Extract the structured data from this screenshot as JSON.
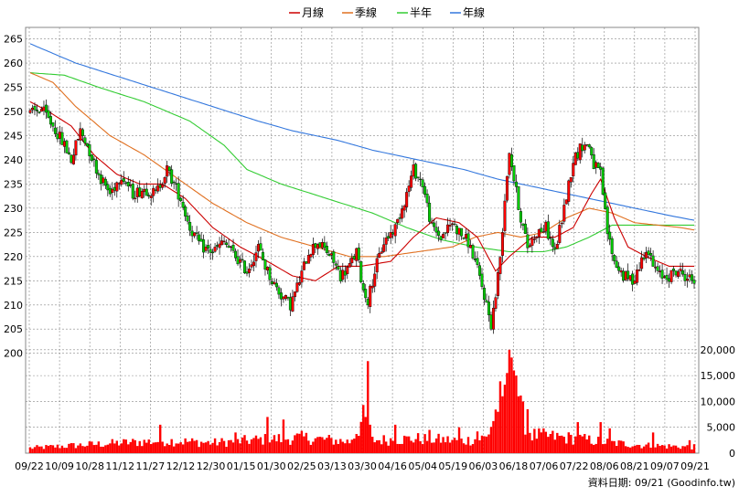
{
  "legend": [
    {
      "label": "月線",
      "color": "#cc0000"
    },
    {
      "label": "季線",
      "color": "#e07020"
    },
    {
      "label": "半年",
      "color": "#33cc33"
    },
    {
      "label": "年線",
      "color": "#3377dd"
    }
  ],
  "footer": {
    "text": "資料日期: 09/21 (Goodinfo.tw)"
  },
  "chart_data": {
    "type": "candlestick",
    "y_ticks": [
      200,
      205,
      210,
      215,
      220,
      225,
      230,
      235,
      240,
      245,
      250,
      255,
      260,
      265
    ],
    "ylim": [
      199,
      267
    ],
    "volume_ticks": [
      "0",
      "5,000",
      "10,000",
      "15,000",
      "20,000"
    ],
    "volume_tick_values": [
      0,
      5000,
      10000,
      15000,
      20000
    ],
    "volume_ylim": [
      0,
      20500
    ],
    "x_ticks": [
      "09/22",
      "10/09",
      "10/28",
      "11/12",
      "11/27",
      "12/12",
      "12/30",
      "01/15",
      "01/30",
      "02/25",
      "03/13",
      "03/30",
      "04/16",
      "05/04",
      "05/19",
      "06/03",
      "06/18",
      "07/06",
      "07/22",
      "08/06",
      "08/21",
      "09/07",
      "09/21"
    ],
    "colors": {
      "up": "#ff0000",
      "down": "#00cc00",
      "volume": "#ff0000",
      "grid": "#888888"
    },
    "price_keyframes": [
      [
        0,
        249.5
      ],
      [
        5,
        250.5
      ],
      [
        10,
        247
      ],
      [
        15,
        243
      ],
      [
        18,
        240
      ],
      [
        22,
        246
      ],
      [
        25,
        243
      ],
      [
        30,
        237
      ],
      [
        35,
        233
      ],
      [
        40,
        237
      ],
      [
        45,
        233
      ],
      [
        50,
        234
      ],
      [
        55,
        233
      ],
      [
        60,
        238
      ],
      [
        63,
        235
      ],
      [
        66,
        232
      ],
      [
        70,
        226
      ],
      [
        75,
        222
      ],
      [
        80,
        221
      ],
      [
        85,
        223
      ],
      [
        90,
        220
      ],
      [
        95,
        217
      ],
      [
        100,
        222
      ],
      [
        103,
        218
      ],
      [
        106,
        215
      ],
      [
        110,
        212
      ],
      [
        114,
        210
      ],
      [
        118,
        215
      ],
      [
        122,
        221
      ],
      [
        126,
        223
      ],
      [
        130,
        221
      ],
      [
        133,
        219
      ],
      [
        136,
        216
      ],
      [
        140,
        218
      ],
      [
        143,
        221
      ],
      [
        146,
        213
      ],
      [
        148,
        211
      ],
      [
        151,
        217
      ],
      [
        155,
        223
      ],
      [
        160,
        226
      ],
      [
        165,
        233
      ],
      [
        168,
        238
      ],
      [
        172,
        235
      ],
      [
        176,
        226
      ],
      [
        180,
        224
      ],
      [
        185,
        227
      ],
      [
        188,
        225
      ],
      [
        192,
        223
      ],
      [
        195,
        219
      ],
      [
        199,
        212
      ],
      [
        202,
        206
      ],
      [
        204,
        212
      ],
      [
        206,
        220
      ],
      [
        208,
        232
      ],
      [
        210,
        242
      ],
      [
        212,
        236
      ],
      [
        215,
        228
      ],
      [
        218,
        222
      ],
      [
        222,
        225
      ],
      [
        226,
        226
      ],
      [
        230,
        221
      ],
      [
        234,
        230
      ],
      [
        238,
        240
      ],
      [
        242,
        243
      ],
      [
        245,
        243
      ],
      [
        247,
        239
      ],
      [
        250,
        237
      ],
      [
        253,
        225
      ],
      [
        256,
        219
      ],
      [
        260,
        216
      ],
      [
        264,
        215
      ],
      [
        267,
        218
      ],
      [
        270,
        222
      ],
      [
        273,
        218
      ],
      [
        276,
        216
      ],
      [
        280,
        216
      ],
      [
        284,
        217
      ],
      [
        287,
        216
      ],
      [
        291,
        215
      ]
    ],
    "ma_month": [
      [
        0,
        252
      ],
      [
        8,
        250
      ],
      [
        18,
        247
      ],
      [
        28,
        241
      ],
      [
        38,
        237
      ],
      [
        48,
        235
      ],
      [
        58,
        235
      ],
      [
        68,
        232
      ],
      [
        80,
        226
      ],
      [
        92,
        222
      ],
      [
        104,
        219
      ],
      [
        115,
        216
      ],
      [
        125,
        215
      ],
      [
        135,
        218
      ],
      [
        145,
        218
      ],
      [
        158,
        219
      ],
      [
        168,
        224
      ],
      [
        178,
        228
      ],
      [
        188,
        227
      ],
      [
        196,
        224
      ],
      [
        204,
        217
      ],
      [
        210,
        220
      ],
      [
        220,
        224
      ],
      [
        230,
        224
      ],
      [
        238,
        226
      ],
      [
        246,
        233
      ],
      [
        250,
        236
      ],
      [
        256,
        228
      ],
      [
        262,
        222
      ],
      [
        270,
        220
      ],
      [
        280,
        218
      ],
      [
        291,
        218
      ]
    ],
    "ma_season": [
      [
        0,
        258
      ],
      [
        10,
        256
      ],
      [
        20,
        251
      ],
      [
        35,
        245
      ],
      [
        50,
        241
      ],
      [
        65,
        236
      ],
      [
        80,
        231
      ],
      [
        95,
        227
      ],
      [
        110,
        224
      ],
      [
        125,
        222
      ],
      [
        140,
        220
      ],
      [
        155,
        220
      ],
      [
        170,
        221
      ],
      [
        185,
        222
      ],
      [
        195,
        224
      ],
      [
        205,
        225
      ],
      [
        215,
        224
      ],
      [
        225,
        225
      ],
      [
        235,
        228
      ],
      [
        245,
        230
      ],
      [
        255,
        229
      ],
      [
        265,
        227
      ],
      [
        275,
        226.5
      ],
      [
        285,
        226
      ],
      [
        291,
        225.5
      ]
    ],
    "ma_half": [
      [
        0,
        258
      ],
      [
        15,
        257.5
      ],
      [
        30,
        255
      ],
      [
        50,
        252
      ],
      [
        70,
        248
      ],
      [
        85,
        243
      ],
      [
        95,
        238
      ],
      [
        110,
        235
      ],
      [
        130,
        232
      ],
      [
        150,
        229
      ],
      [
        165,
        226
      ],
      [
        180,
        223.5
      ],
      [
        195,
        222
      ],
      [
        210,
        221
      ],
      [
        225,
        221
      ],
      [
        235,
        222
      ],
      [
        245,
        224
      ],
      [
        255,
        226.5
      ],
      [
        270,
        226.5
      ],
      [
        291,
        226.5
      ]
    ],
    "ma_year": [
      [
        0,
        264
      ],
      [
        20,
        260
      ],
      [
        40,
        257
      ],
      [
        60,
        254
      ],
      [
        80,
        251
      ],
      [
        100,
        248
      ],
      [
        115,
        246
      ],
      [
        135,
        244
      ],
      [
        150,
        242
      ],
      [
        170,
        240
      ],
      [
        190,
        238
      ],
      [
        205,
        236
      ],
      [
        225,
        234
      ],
      [
        245,
        232
      ],
      [
        265,
        230
      ],
      [
        280,
        228.5
      ],
      [
        291,
        227.5
      ]
    ],
    "volume_keyframes": [
      [
        0,
        1000
      ],
      [
        20,
        1500
      ],
      [
        40,
        2000
      ],
      [
        60,
        2400
      ],
      [
        80,
        2000
      ],
      [
        100,
        2600
      ],
      [
        120,
        3000
      ],
      [
        140,
        2200
      ],
      [
        148,
        8000
      ],
      [
        150,
        2500
      ],
      [
        170,
        2800
      ],
      [
        190,
        2400
      ],
      [
        200,
        3000
      ],
      [
        205,
        9000
      ],
      [
        210,
        14000
      ],
      [
        215,
        8000
      ],
      [
        220,
        3500
      ],
      [
        240,
        2800
      ],
      [
        255,
        2000
      ],
      [
        270,
        1500
      ],
      [
        291,
        1200
      ]
    ],
    "volume_spikes": [
      [
        57,
        5500
      ],
      [
        90,
        4000
      ],
      [
        104,
        7000
      ],
      [
        111,
        6500
      ],
      [
        147,
        7000
      ],
      [
        148,
        17800
      ],
      [
        149,
        5500
      ],
      [
        160,
        5500
      ],
      [
        175,
        4500
      ],
      [
        188,
        5000
      ],
      [
        196,
        4200
      ],
      [
        205,
        8000
      ],
      [
        207,
        11000
      ],
      [
        209,
        15500
      ],
      [
        210,
        20000
      ],
      [
        211,
        18500
      ],
      [
        212,
        16000
      ],
      [
        213,
        15000
      ],
      [
        214,
        11000
      ],
      [
        216,
        10000
      ],
      [
        218,
        8500
      ],
      [
        240,
        6000
      ],
      [
        250,
        6000
      ],
      [
        254,
        4800
      ],
      [
        273,
        4000
      ],
      [
        289,
        2500
      ]
    ]
  }
}
